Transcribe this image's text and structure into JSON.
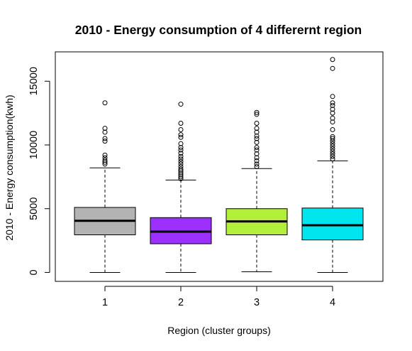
{
  "chart_data": {
    "type": "boxplot",
    "title": "2010 - Energy consumption of 4 differernt region",
    "xlabel": "Region (cluster groups)",
    "ylabel": "2010 - Energy consumption(kwh)",
    "categories": [
      "1",
      "2",
      "3",
      "4"
    ],
    "y_ticks": [
      0,
      5000,
      10000,
      15000
    ],
    "ylim": [
      -700,
      17300
    ],
    "colors": [
      "#b3b3b3",
      "#9b30ff",
      "#b3ee3a",
      "#00e5ee"
    ],
    "boxes": [
      {
        "category": "1",
        "whisker_low": 0,
        "q1": 2950,
        "median": 4050,
        "q3": 5100,
        "whisker_high": 8200,
        "outliers": [
          8500,
          8650,
          8800,
          9000,
          9200,
          10300,
          10500,
          11000,
          11300,
          13300
        ]
      },
      {
        "category": "2",
        "whisker_low": 0,
        "q1": 2250,
        "median": 3200,
        "q3": 4300,
        "whisker_high": 7250,
        "outliers": [
          7350,
          7500,
          7650,
          7800,
          7950,
          8100,
          8300,
          8500,
          8700,
          8900,
          9100,
          9350,
          9600,
          9800,
          10100,
          10600,
          10800,
          11200,
          11700,
          13200
        ]
      },
      {
        "category": "3",
        "whisker_low": 50,
        "q1": 2950,
        "median": 4000,
        "q3": 5000,
        "whisker_high": 8150,
        "outliers": [
          8300,
          8500,
          8750,
          9000,
          9300,
          9600,
          9800,
          10200,
          10500,
          10700,
          11000,
          11300,
          11700,
          12400,
          12550
        ]
      },
      {
        "category": "4",
        "whisker_low": 0,
        "q1": 2550,
        "median": 3700,
        "q3": 5050,
        "whisker_high": 8750,
        "outliers": [
          8900,
          9100,
          9300,
          9500,
          9700,
          9900,
          10100,
          10300,
          10500,
          10650,
          11200,
          11800,
          12100,
          12500,
          12800,
          13100,
          13300,
          13800,
          16000,
          16700
        ]
      }
    ],
    "grid": false,
    "legend": "none"
  }
}
